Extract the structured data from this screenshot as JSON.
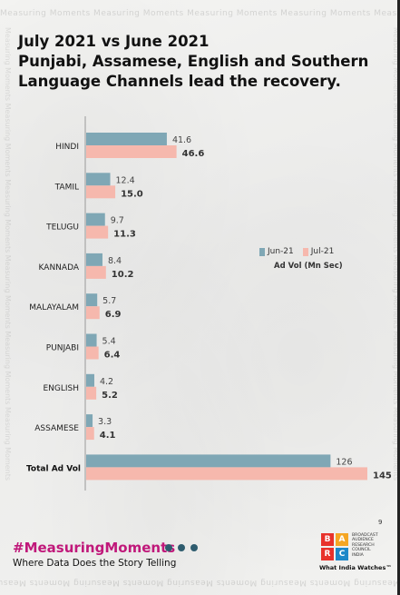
{
  "watermark": "Measuring Moments",
  "title": {
    "line1": "July 2021 vs June 2021",
    "line2": "Punjabi, Assamese, English and Southern",
    "line3": "Language Channels lead the recovery."
  },
  "colors": {
    "jun": "#7fa7b5",
    "jul": "#f6b8ad",
    "axis": "#999999",
    "brand": "#c0187a",
    "dots": "#2e5c6e"
  },
  "chart_data": {
    "type": "bar",
    "orientation": "horizontal",
    "categories": [
      "HINDI",
      "TAMIL",
      "TELUGU",
      "KANNADA",
      "MALAYALAM",
      "PUNJABI",
      "ENGLISH",
      "ASSAMESE",
      "Total Ad Vol"
    ],
    "series": [
      {
        "name": "Jun-21",
        "values": [
          41.6,
          12.4,
          9.7,
          8.4,
          5.7,
          5.4,
          4.2,
          3.3,
          126
        ]
      },
      {
        "name": "Jul-21",
        "values": [
          46.6,
          15.0,
          11.3,
          10.2,
          6.9,
          6.4,
          5.2,
          4.1,
          145
        ]
      }
    ],
    "value_labels": {
      "Jun-21": [
        "41.6",
        "12.4",
        "9.7",
        "8.4",
        "5.7",
        "5.4",
        "4.2",
        "3.3",
        "126"
      ],
      "Jul-21": [
        "46.6",
        "15.0",
        "11.3",
        "10.2",
        "6.9",
        "6.4",
        "5.2",
        "4.1",
        "145"
      ]
    },
    "legend_unit": "Ad Vol (Mn Sec)",
    "legend_position": "right",
    "xlim": [
      0,
      145
    ],
    "grid": false
  },
  "footer": {
    "hashtag": "#MeasuringMoments",
    "tagline": "Where Data Does the Story Telling",
    "page_number": "9"
  },
  "logo": {
    "letters": [
      "B",
      "A",
      "R",
      "C"
    ],
    "letter_colors": [
      "#e8322b",
      "#f5a623",
      "#e8322b",
      "#1e88c8"
    ],
    "org_lines": [
      "BROADCAST",
      "AUDIENCE",
      "RESEARCH",
      "COUNCIL",
      "INDIA"
    ],
    "tagline": "What India Watches™"
  }
}
